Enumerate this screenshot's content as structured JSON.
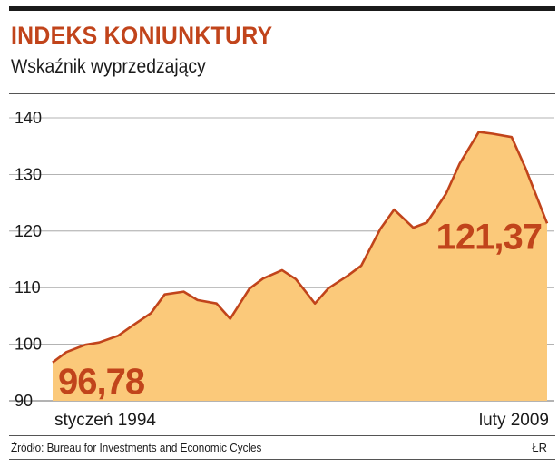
{
  "header": {
    "title": "INDEKS KONIUNKTURY",
    "subtitle": "Wskaźnik wyprzedzający"
  },
  "footer": {
    "source": "Źródło: Bureau for Investments and Economic Cycles",
    "credit": "ŁR"
  },
  "colors": {
    "title": "#c1441b",
    "line": "#c1441b",
    "fill": "#fbc97a",
    "grid": "#9a9a9a",
    "value_label": "#c1441b"
  },
  "chart_data": {
    "type": "area",
    "title": "INDEKS KONIUNKTURY",
    "subtitle": "Wskaźnik wyprzedzający",
    "xlabel": "",
    "ylabel": "",
    "x_range": [
      "1994-01",
      "2009-02"
    ],
    "x_tick_labels": [
      "styczeń 1994",
      "luty 2009"
    ],
    "ylim": [
      90,
      140
    ],
    "y_ticks": [
      90,
      100,
      110,
      120,
      130,
      140
    ],
    "grid": true,
    "legend": "none",
    "annotations": [
      {
        "text": "96,78",
        "x": "1994-01",
        "y": 96.78
      },
      {
        "text": "121,37",
        "x": "2009-02",
        "y": 121.37
      }
    ],
    "series": [
      {
        "x": [
          "1994-01",
          "1994-06",
          "1995-01",
          "1995-06",
          "1996-01",
          "1996-06",
          "1997-01",
          "1997-06",
          "1998-01",
          "1998-06",
          "1999-01",
          "1999-06",
          "2000-01",
          "2000-06",
          "2001-01",
          "2001-06",
          "2002-01",
          "2002-06",
          "2003-01",
          "2003-06",
          "2004-01",
          "2004-06",
          "2005-01",
          "2005-06",
          "2006-01",
          "2006-06",
          "2007-01",
          "2007-06",
          "2008-01",
          "2008-06",
          "2009-02"
        ],
        "values": [
          96.78,
          98.6,
          99.9,
          100.3,
          101.5,
          103.2,
          105.5,
          108.8,
          109.3,
          107.8,
          107.2,
          104.5,
          109.8,
          111.6,
          113.1,
          111.5,
          107.2,
          109.9,
          112.1,
          113.9,
          120.4,
          123.8,
          120.6,
          121.5,
          126.6,
          131.9,
          137.5,
          137.2,
          136.6,
          131.2,
          121.37
        ]
      }
    ]
  }
}
